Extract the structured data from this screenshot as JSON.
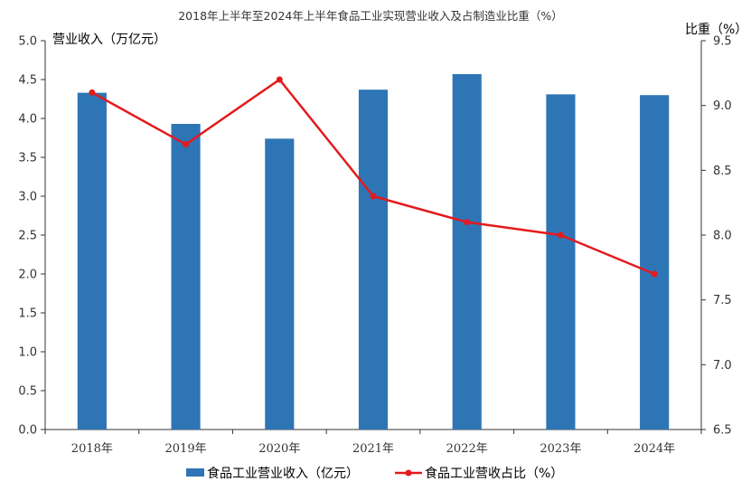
{
  "chart_data": {
    "type": "bar+line",
    "title": "2018年上半年至2024年上半年食品工业实现营业收入及占制造业比重（%）",
    "categories": [
      "2018年",
      "2019年",
      "2020年",
      "2021年",
      "2022年",
      "2023年",
      "2024年"
    ],
    "left_axis": {
      "title": "营业收入（万亿元）",
      "ylim": [
        0,
        5.0
      ],
      "ticks": [
        "0.0",
        "0.5",
        "1.0",
        "1.5",
        "2.0",
        "2.5",
        "3.0",
        "3.5",
        "4.0",
        "4.5",
        "5.0"
      ]
    },
    "right_axis": {
      "title": "比重（%）",
      "ylim": [
        6.5,
        9.5
      ],
      "ticks": [
        "6.5",
        "7.0",
        "7.5",
        "8.0",
        "8.5",
        "9.0",
        "9.5"
      ]
    },
    "series": [
      {
        "name": "食品工业营业收入（亿元）",
        "type": "bar",
        "axis": "left",
        "color": "#2E75B6",
        "values": [
          4.33,
          3.93,
          3.74,
          4.37,
          4.57,
          4.31,
          4.3
        ]
      },
      {
        "name": "食品工业营收占比（%）",
        "type": "line",
        "axis": "right",
        "color": "#E41A1C",
        "values": [
          9.1,
          8.7,
          9.2,
          8.3,
          8.1,
          8.0,
          7.7
        ]
      }
    ],
    "legend_position": "bottom",
    "grid": false
  }
}
